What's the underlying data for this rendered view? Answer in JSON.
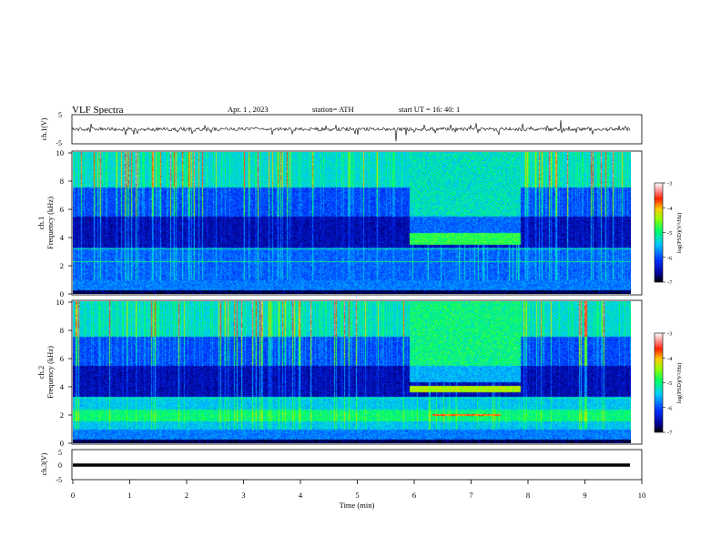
{
  "header": {
    "title": "VLF  Spectra",
    "date": "Apr. 1  , 2023",
    "station": "station= ATH",
    "start_ut": "start  UT  =    16: 40: 1"
  },
  "chart_data": [
    {
      "type": "line",
      "panel": "ch1-waveform",
      "ylabel": "ch.1(V)",
      "ylim": [
        -5,
        5
      ],
      "yticks": [
        "5",
        "-5"
      ],
      "xlim": [
        0,
        10
      ],
      "baseline_value": 0,
      "series_color": "#000000"
    },
    {
      "type": "heatmap",
      "panel": "ch1-spectrogram",
      "ylabel": "ch.1\nFrequency (kHz)",
      "ylim": [
        0,
        10
      ],
      "yticks": [
        "0",
        "2",
        "4",
        "6",
        "8",
        "10"
      ],
      "xlim": [
        0,
        9.8
      ],
      "colorbar": {
        "label": "log(PSD)(V²/Hz)",
        "range": [
          -7,
          -3
        ],
        "ticks": [
          "-3",
          "-4",
          "-5",
          "-6",
          "-7"
        ]
      },
      "bright_band": {
        "t_start_min": 5.9,
        "t_end_min": 7.85,
        "f_low_khz": 3.5,
        "f_high_khz": 4.3
      }
    },
    {
      "type": "heatmap",
      "panel": "ch2-spectrogram",
      "ylabel": "ch.2\nFrequency (kHz)",
      "ylim": [
        0,
        10
      ],
      "yticks": [
        "0",
        "2",
        "4",
        "6",
        "8",
        "10"
      ],
      "xlim": [
        0,
        9.8
      ],
      "colorbar": {
        "label": "log(PSD)(V²/Hz)",
        "range": [
          -7,
          -3
        ],
        "ticks": [
          "-3",
          "-4",
          "-5",
          "-6",
          "-7"
        ]
      },
      "bright_band": {
        "t_start_min": 5.9,
        "t_end_min": 7.85,
        "f_low_khz": 3.6,
        "f_high_khz": 4.1
      }
    },
    {
      "type": "line",
      "panel": "ch3-waveform",
      "ylabel": "ch.3(V)",
      "ylim": [
        -5,
        5
      ],
      "yticks": [
        "5",
        "0",
        "-5"
      ],
      "xlim": [
        0,
        10
      ],
      "baseline_value": 0,
      "series_color": "#000000"
    }
  ],
  "x_axis": {
    "label": "Time  (min)",
    "ticks": [
      "0",
      "1",
      "2",
      "3",
      "4",
      "5",
      "6",
      "7",
      "8",
      "9",
      "10"
    ]
  },
  "colors": {
    "palette": [
      "#000064",
      "#0000c8",
      "#0050ff",
      "#00b4ff",
      "#00ffc8",
      "#50ff50",
      "#c8ff00",
      "#ffc800",
      "#ff4000",
      "#c80000"
    ]
  }
}
